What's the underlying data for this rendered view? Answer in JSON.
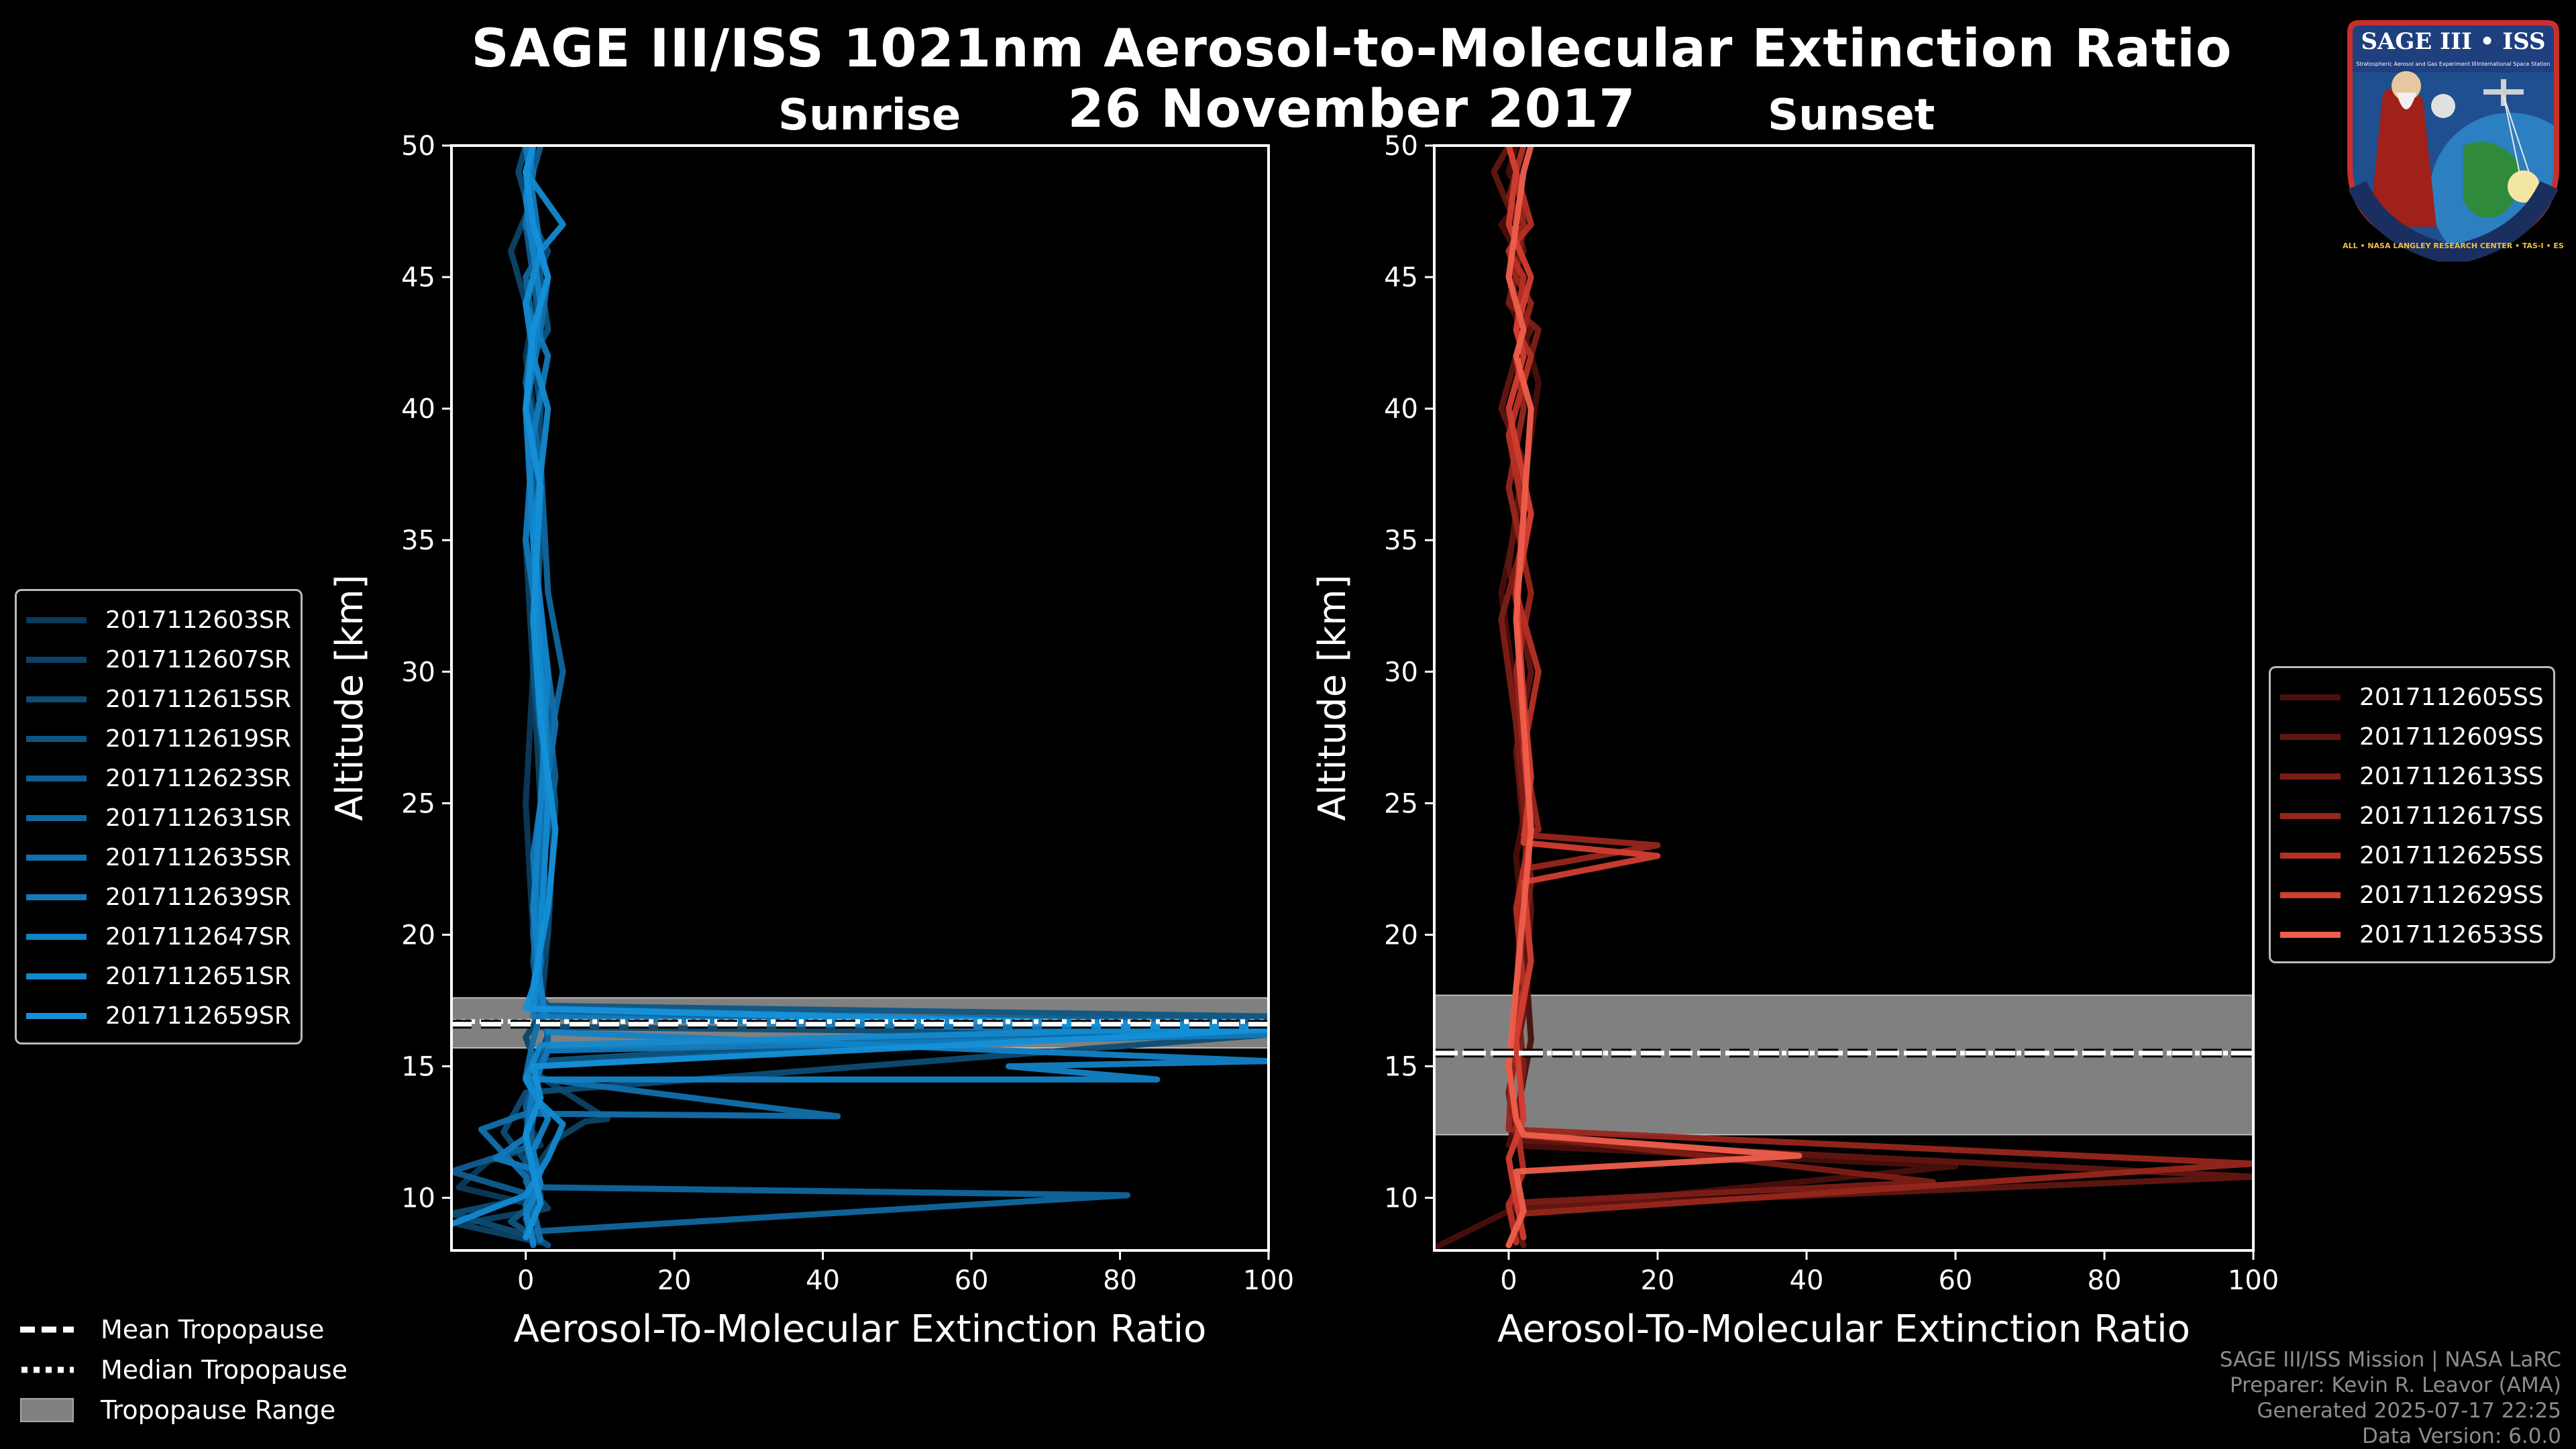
{
  "header": {
    "title_line1": "SAGE III/ISS 1021nm Aerosol-to-Molecular Extinction Ratio",
    "title_line2": "26 November 2017"
  },
  "badge": {
    "name": "SAGE III • ISS",
    "subtitle": "Stratospheric Aerosol and Gas Experiment III",
    "station": "International Space Station",
    "ring_text": "BALL • NASA LANGLEY RESEARCH CENTER • TAS-I • ESA"
  },
  "colors": {
    "sunrise": [
      "#0b3a5a",
      "#0c4366",
      "#0d4c74",
      "#0e5582",
      "#0f5e90",
      "#10679e",
      "#1170ac",
      "#1279ba",
      "#1382c6",
      "#1389cf",
      "#1490d8"
    ],
    "sunset": [
      "#4a0f0c",
      "#621611",
      "#7d1d16",
      "#98261c",
      "#b53024",
      "#d23e30",
      "#ef5e4c"
    ],
    "trop_range": "#808080"
  },
  "legend_tropopause": {
    "mean": "Mean Tropopause",
    "median": "Median Tropopause",
    "range": "Tropopause Range"
  },
  "footer": {
    "line1": "SAGE III/ISS Mission | NASA LaRC",
    "line2": "Preparer: Kevin R. Leavor (AMA)",
    "line3": "Generated 2025-07-17 22:25",
    "line4": "Data Version: 6.0.0"
  },
  "chart_data": [
    {
      "type": "line",
      "panel_title": "Sunrise",
      "xlabel": "Aerosol-To-Molecular Extinction Ratio",
      "ylabel": "Altitude [km]",
      "xlim": [
        -10,
        100
      ],
      "ylim": [
        8,
        50
      ],
      "xticks": [
        0,
        20,
        40,
        60,
        80,
        100
      ],
      "yticks": [
        10,
        15,
        20,
        25,
        30,
        35,
        40,
        45,
        50
      ],
      "tropopause": {
        "mean": 16.6,
        "median": 16.7,
        "range": [
          15.7,
          17.6
        ]
      },
      "series": [
        {
          "name": "2017112603SR",
          "x": [
            1,
            0,
            -9,
            -5,
            2,
            0,
            1,
            2,
            3,
            2,
            1,
            0,
            1,
            2,
            1,
            0,
            2,
            1,
            0,
            1
          ],
          "y": [
            8.5,
            9.8,
            10.4,
            11.4,
            12,
            13,
            14.2,
            15.4,
            16.2,
            17,
            20,
            25,
            30,
            35,
            40,
            42,
            45,
            47,
            48,
            50
          ]
        },
        {
          "name": "2017112607SR",
          "x": [
            2,
            -9,
            3,
            0,
            4,
            8,
            11,
            2,
            0,
            2,
            3,
            2,
            1,
            0,
            2,
            1,
            0,
            -2,
            1,
            0
          ],
          "y": [
            8.3,
            9,
            9.6,
            10.6,
            12.2,
            12.9,
            13,
            14.6,
            16.1,
            17,
            20,
            25,
            30,
            35,
            40,
            42,
            44,
            46,
            48,
            50
          ]
        },
        {
          "name": "2017112615SR",
          "x": [
            0,
            -10,
            2,
            1,
            -3,
            0,
            100,
            2,
            1,
            3,
            4,
            2,
            1,
            2,
            1,
            0,
            3,
            1,
            -1,
            0
          ],
          "y": [
            8.6,
            9.4,
            10.1,
            11,
            12.5,
            14,
            16.2,
            16.5,
            17.5,
            20,
            25,
            30,
            35,
            40,
            42,
            44,
            46,
            47,
            49,
            50
          ]
        },
        {
          "name": "2017112619SR",
          "x": [
            3,
            -2,
            2,
            0,
            1,
            2,
            100,
            3,
            1,
            2,
            3,
            1,
            2,
            0,
            1,
            3,
            2,
            0,
            1,
            0
          ],
          "y": [
            8.2,
            9.1,
            10,
            11.2,
            13,
            15.2,
            16.9,
            17.3,
            18,
            20,
            25,
            30,
            35,
            40,
            42,
            43,
            45,
            47,
            49,
            50
          ]
        },
        {
          "name": "2017112623SR",
          "x": [
            1,
            0,
            2,
            -10,
            1,
            0,
            2,
            100,
            2,
            1,
            2,
            4,
            2,
            1,
            0,
            2,
            1,
            0,
            1,
            2
          ],
          "y": [
            8.4,
            9.2,
            10,
            11,
            12,
            13.5,
            15,
            16.7,
            17,
            19,
            22,
            26,
            31,
            36,
            40,
            43,
            45,
            47,
            49,
            50
          ]
        },
        {
          "name": "2017112631SR",
          "x": [
            0,
            81,
            2,
            0,
            1,
            3,
            2,
            1,
            3,
            5,
            3,
            2,
            0,
            1,
            0,
            2,
            1,
            0,
            1,
            0
          ],
          "y": [
            8.7,
            10.1,
            10.4,
            12,
            14,
            16,
            18,
            21,
            27,
            30,
            33,
            38,
            41,
            43,
            45,
            46,
            47,
            48,
            49,
            50
          ]
        },
        {
          "name": "2017112635SR",
          "x": [
            2,
            1,
            0,
            -6,
            0,
            42,
            0,
            1,
            2,
            1,
            2,
            4,
            2,
            1,
            0,
            2,
            3,
            0,
            1,
            0
          ],
          "y": [
            8.4,
            9.6,
            10.8,
            12.6,
            13.2,
            13.1,
            14.6,
            16,
            17,
            20,
            24,
            28,
            32,
            36,
            40,
            43,
            45,
            47,
            49,
            50
          ]
        },
        {
          "name": "2017112639SR",
          "x": [
            1,
            0,
            2,
            -4,
            0,
            1,
            3,
            100,
            1,
            2,
            1,
            3,
            2,
            0,
            1,
            3,
            0,
            2,
            1,
            0
          ],
          "y": [
            8.2,
            9.7,
            11,
            11.5,
            12.3,
            14.3,
            15.6,
            16.2,
            16.9,
            19,
            23,
            27,
            31,
            35,
            39,
            42,
            44,
            46,
            48,
            50
          ]
        },
        {
          "name": "2017112647SR",
          "x": [
            1,
            0,
            2,
            1,
            3,
            0,
            85,
            65,
            100,
            3,
            2,
            1,
            2,
            3,
            1,
            0,
            2,
            1,
            0,
            1
          ],
          "y": [
            8.3,
            9.4,
            10.5,
            11.8,
            13,
            14.5,
            14.5,
            15,
            15.2,
            16.3,
            18,
            21,
            25,
            30,
            35,
            40,
            44,
            46,
            48,
            50
          ]
        },
        {
          "name": "2017112651SR",
          "x": [
            -10,
            0,
            3,
            5,
            2,
            0,
            2,
            100,
            1,
            2,
            3,
            2,
            1,
            3,
            1,
            0,
            2,
            5,
            0,
            1
          ],
          "y": [
            9,
            10.1,
            11.5,
            12.8,
            13.6,
            14.5,
            15.8,
            16.5,
            17.2,
            20,
            25,
            30,
            35,
            40,
            42,
            44,
            46,
            47,
            49,
            50
          ]
        },
        {
          "name": "2017112659SR",
          "x": [
            0,
            2,
            1,
            0,
            2,
            1,
            100,
            0,
            1,
            3,
            4,
            2,
            1,
            2,
            0,
            1,
            3,
            1,
            0,
            1
          ],
          "y": [
            8.5,
            9.8,
            11,
            12.4,
            13.8,
            15,
            16.4,
            17.2,
            18,
            21,
            24,
            28,
            32,
            37,
            40,
            43,
            45,
            47,
            49,
            50
          ]
        }
      ]
    },
    {
      "type": "line",
      "panel_title": "Sunset",
      "xlabel": "Aerosol-To-Molecular Extinction Ratio",
      "ylabel": "Altitude [km]",
      "xlim": [
        -10,
        100
      ],
      "ylim": [
        8,
        50
      ],
      "xticks": [
        0,
        20,
        40,
        60,
        80,
        100
      ],
      "yticks": [
        10,
        15,
        20,
        25,
        30,
        35,
        40,
        45,
        50
      ],
      "tropopause": {
        "mean": 15.5,
        "median": 15.5,
        "range": [
          12.4,
          17.7
        ]
      },
      "series": [
        {
          "name": "2017112605SS",
          "x": [
            -10,
            0,
            60,
            0,
            1,
            3,
            2,
            1,
            3,
            1,
            -1,
            2,
            4,
            2,
            0,
            1,
            -1,
            2,
            0,
            1
          ],
          "y": [
            8.1,
            9.5,
            11.2,
            12,
            13,
            16,
            20,
            23,
            26,
            29,
            33,
            37,
            41,
            43,
            44,
            46,
            47,
            48,
            49,
            50
          ]
        },
        {
          "name": "2017112609SS",
          "x": [
            2,
            0,
            100,
            1,
            0,
            2,
            3,
            2,
            1,
            3,
            0,
            2,
            -1,
            1,
            3,
            0,
            2,
            1,
            -2,
            0
          ],
          "y": [
            8.2,
            9.6,
            10.8,
            12.2,
            14,
            17,
            21,
            24,
            27,
            30,
            34,
            38,
            40,
            42,
            43,
            45,
            46,
            47,
            49,
            50
          ]
        },
        {
          "name": "2017112613SS",
          "x": [
            1,
            0,
            57,
            1,
            2,
            1,
            3,
            2,
            1,
            -1,
            3,
            0,
            2,
            4,
            0,
            1,
            2,
            0,
            1,
            0
          ],
          "y": [
            8.4,
            9.8,
            10.6,
            12.4,
            15,
            18,
            22,
            25,
            28,
            32,
            36,
            39,
            41,
            43,
            44,
            45,
            47,
            48,
            49,
            50
          ]
        },
        {
          "name": "2017112617SS",
          "x": [
            0,
            2,
            100,
            0,
            2,
            20,
            2,
            4,
            2,
            1,
            3,
            0,
            2,
            1,
            3,
            1,
            0,
            2,
            1,
            0
          ],
          "y": [
            8.2,
            9.4,
            11.3,
            12.6,
            22.5,
            23.4,
            23.8,
            24,
            27,
            30,
            33,
            37,
            40,
            42,
            44,
            45,
            46,
            47,
            49,
            50
          ]
        },
        {
          "name": "2017112625SS",
          "x": [
            1,
            0,
            2,
            1,
            0,
            2,
            1,
            3,
            2,
            4,
            1,
            2,
            0,
            3,
            1,
            2,
            0,
            3,
            1,
            2
          ],
          "y": [
            8.3,
            9.7,
            11,
            13,
            15,
            18,
            21,
            24,
            27,
            30,
            33,
            36,
            39,
            42,
            43,
            45,
            46,
            47,
            49,
            50
          ]
        },
        {
          "name": "2017112629SS",
          "x": [
            2,
            1,
            0,
            2,
            1,
            3,
            2,
            20,
            2,
            3,
            2,
            1,
            3,
            0,
            2,
            1,
            3,
            0,
            1,
            0
          ],
          "y": [
            8.5,
            9.9,
            11.5,
            13,
            16,
            19,
            22,
            23,
            23.5,
            26,
            29,
            33,
            36,
            40,
            42,
            43,
            45,
            47,
            49,
            50
          ]
        },
        {
          "name": "2017112653SS",
          "x": [
            0,
            2,
            1,
            39,
            2,
            1,
            0,
            1,
            2,
            3,
            2,
            1,
            2,
            3,
            1,
            2,
            0,
            1,
            2,
            3
          ],
          "y": [
            8.2,
            9.5,
            11,
            11.6,
            12.4,
            13,
            15,
            18,
            21,
            24,
            28,
            32,
            36,
            40,
            42,
            43,
            45,
            47,
            49,
            50
          ]
        }
      ]
    }
  ]
}
